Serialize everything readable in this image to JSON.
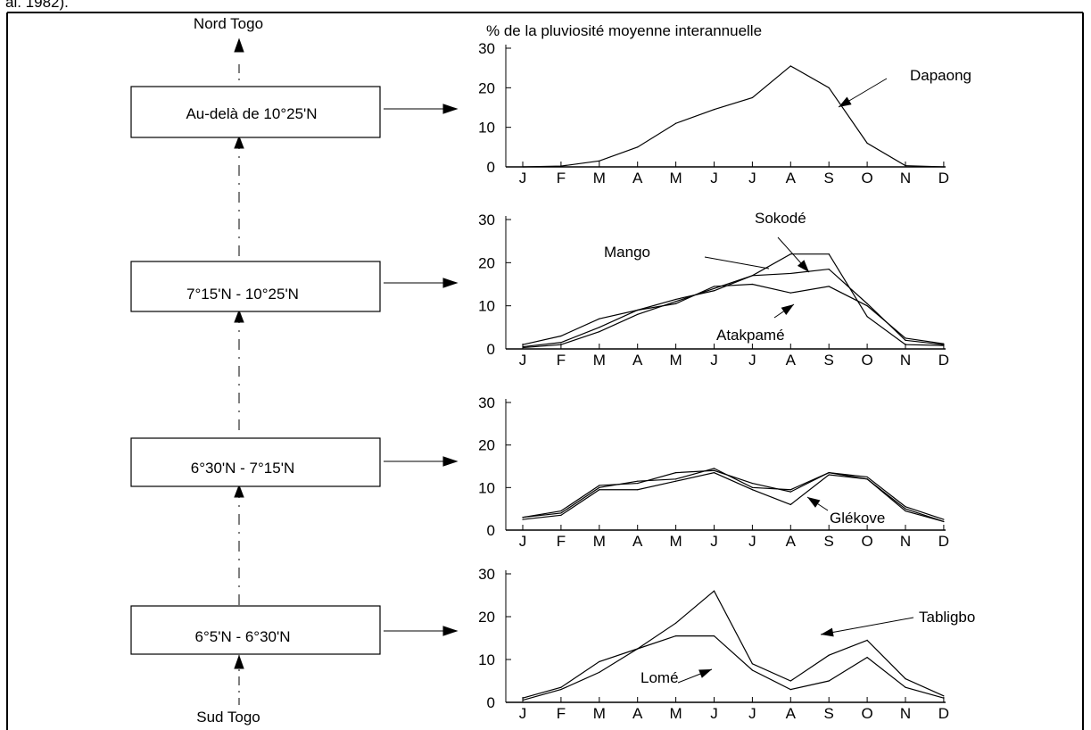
{
  "page": {
    "top_text": "al. 1982).",
    "nord_label": "Nord Togo",
    "sud_label": "Sud Togo",
    "zones": [
      "Au-delà de 10°25'N",
      "7°15'N - 10°25'N",
      "6°30'N - 7°15'N",
      "6°5'N - 6°30'N"
    ],
    "ylabel": "% de la pluviosité moyenne interannuelle"
  },
  "chart_data": [
    {
      "type": "line",
      "zone": "Au-delà de 10°25'N",
      "categories": [
        "J",
        "F",
        "M",
        "A",
        "M",
        "J",
        "J",
        "A",
        "S",
        "O",
        "N",
        "D"
      ],
      "ylim": [
        0,
        30
      ],
      "yticks": [
        0,
        10,
        20,
        30
      ],
      "series": [
        {
          "name": "Dapaong",
          "values": [
            0,
            0.2,
            1.5,
            5,
            11,
            14.5,
            17.5,
            25.5,
            20,
            6,
            0.3,
            0
          ]
        }
      ],
      "annotations": [
        {
          "text": "Dapaong",
          "series": "Dapaong"
        }
      ]
    },
    {
      "type": "line",
      "zone": "7°15'N - 10°25'N",
      "categories": [
        "J",
        "F",
        "M",
        "A",
        "M",
        "J",
        "J",
        "A",
        "S",
        "O",
        "N",
        "D"
      ],
      "ylim": [
        0,
        30
      ],
      "yticks": [
        0,
        10,
        20,
        30
      ],
      "series": [
        {
          "name": "Mango",
          "values": [
            0.3,
            1,
            4,
            8,
            11,
            14,
            17,
            22,
            22,
            7.5,
            1,
            0.8
          ]
        },
        {
          "name": "Sokodé",
          "values": [
            0.5,
            1.5,
            5,
            9,
            11.5,
            13.5,
            17,
            17.5,
            18.5,
            10.5,
            2,
            1
          ]
        },
        {
          "name": "Atakpamé",
          "values": [
            1,
            3,
            7,
            9,
            10.5,
            14.5,
            15,
            13,
            14.5,
            10,
            2.5,
            1.2
          ]
        }
      ],
      "annotations": [
        {
          "text": "Mango",
          "series": "Mango"
        },
        {
          "text": "Sokodé",
          "series": "Sokodé"
        },
        {
          "text": "Atakpamé",
          "series": "Atakpamé"
        }
      ]
    },
    {
      "type": "line",
      "zone": "6°30'N - 7°15'N",
      "categories": [
        "J",
        "F",
        "M",
        "A",
        "M",
        "J",
        "J",
        "A",
        "S",
        "O",
        "N",
        "D"
      ],
      "ylim": [
        0,
        30
      ],
      "yticks": [
        0,
        10,
        20,
        30
      ],
      "series": [
        {
          "name": "Glékové",
          "values": [
            3,
            4.5,
            10.5,
            11,
            13.5,
            14,
            11,
            9,
            13.5,
            12.5,
            5.5,
            2.5
          ]
        },
        {
          "name": "",
          "values": [
            2.5,
            3.5,
            9.5,
            9.5,
            11.5,
            13.5,
            9.5,
            6,
            13,
            12,
            4.5,
            2
          ]
        },
        {
          "name": "",
          "values": [
            3,
            4,
            10,
            11.5,
            12,
            14.5,
            10,
            9.5,
            13.5,
            12,
            5,
            2
          ]
        }
      ],
      "annotations": [
        {
          "text": "Glékove",
          "series": "Glékové"
        }
      ]
    },
    {
      "type": "line",
      "zone": "6°5'N - 6°30'N",
      "categories": [
        "J",
        "F",
        "M",
        "A",
        "M",
        "J",
        "J",
        "A",
        "S",
        "O",
        "N",
        "D"
      ],
      "ylim": [
        0,
        30
      ],
      "yticks": [
        0,
        10,
        20,
        30
      ],
      "series": [
        {
          "name": "Tabligbo",
          "values": [
            0.5,
            3,
            7,
            12.5,
            18.5,
            26,
            9,
            5,
            11,
            14.5,
            5.5,
            1.5
          ]
        },
        {
          "name": "Lomé",
          "values": [
            1,
            3.5,
            9.5,
            12.5,
            15.5,
            15.5,
            7.5,
            3,
            5,
            10.5,
            3.5,
            1
          ]
        }
      ],
      "annotations": [
        {
          "text": "Tabligbo",
          "series": "Tabligbo"
        },
        {
          "text": "Lomé",
          "series": "Lomé"
        }
      ]
    }
  ]
}
